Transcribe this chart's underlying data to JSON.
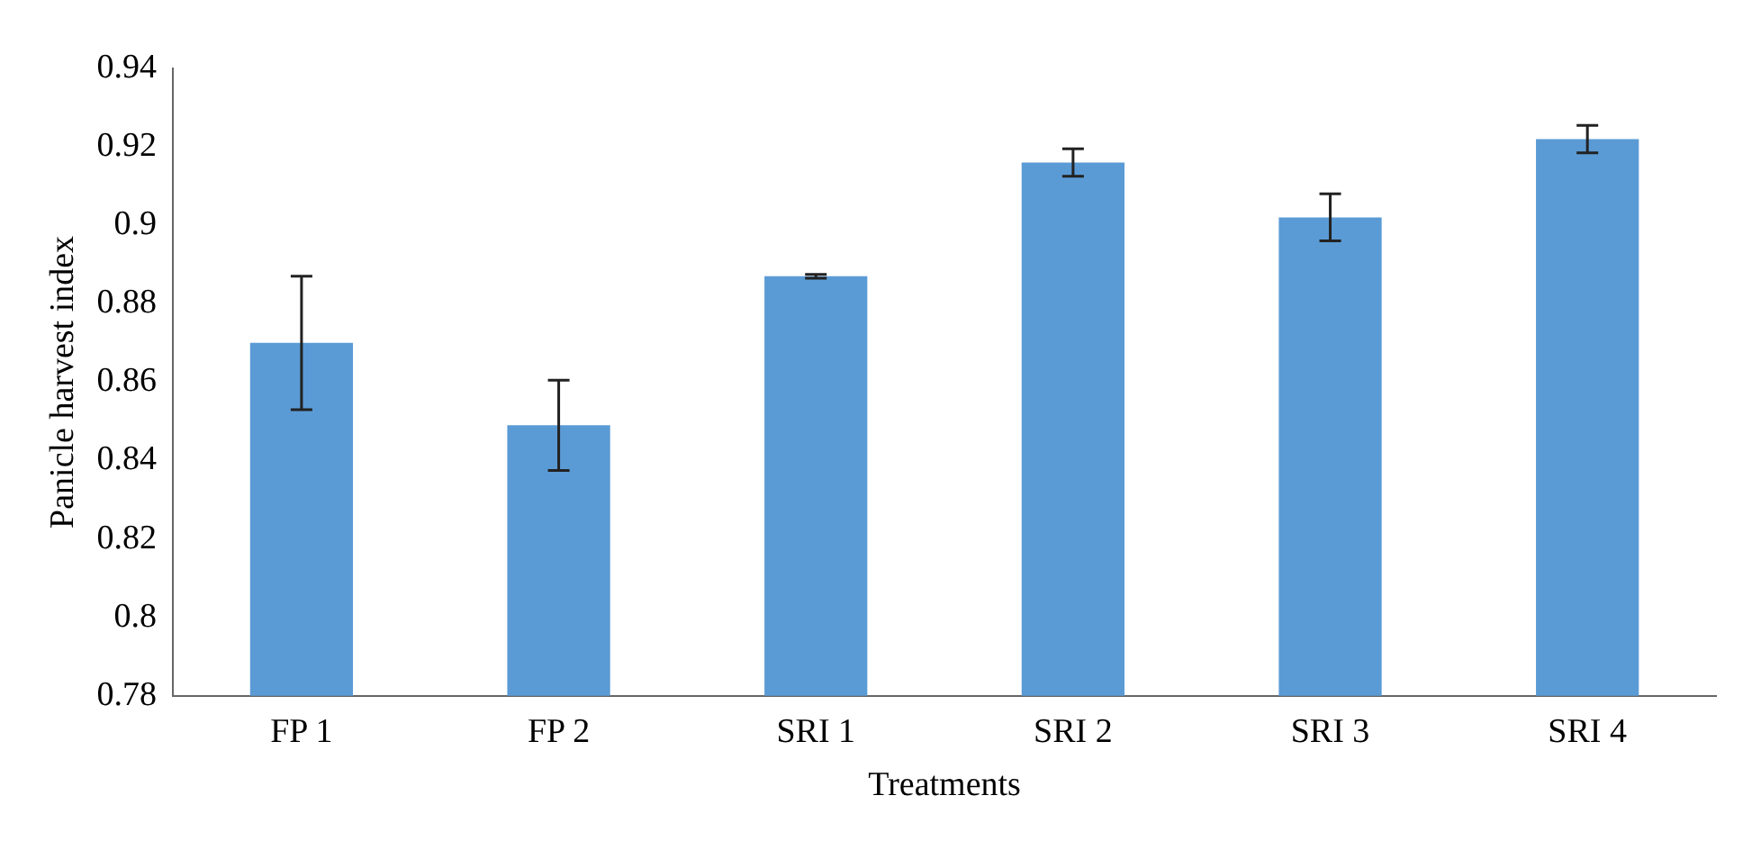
{
  "chart_data": {
    "type": "bar",
    "xlabel": "Treatments",
    "ylabel": "Panicle harvest index",
    "categories": [
      "FP 1",
      "FP 2",
      "SRI 1",
      "SRI 2",
      "SRI 3",
      "SRI 4"
    ],
    "values": [
      0.87,
      0.849,
      0.887,
      0.916,
      0.902,
      0.922
    ],
    "errors": [
      0.017,
      0.0115,
      0.0005,
      0.0035,
      0.006,
      0.0035
    ],
    "color": "#5b9bd5",
    "ylim": [
      0.78,
      0.94
    ],
    "yticks": [
      0.78,
      0.8,
      0.82,
      0.84,
      0.86,
      0.88,
      0.9,
      0.92,
      0.94
    ],
    "grid": false
  }
}
